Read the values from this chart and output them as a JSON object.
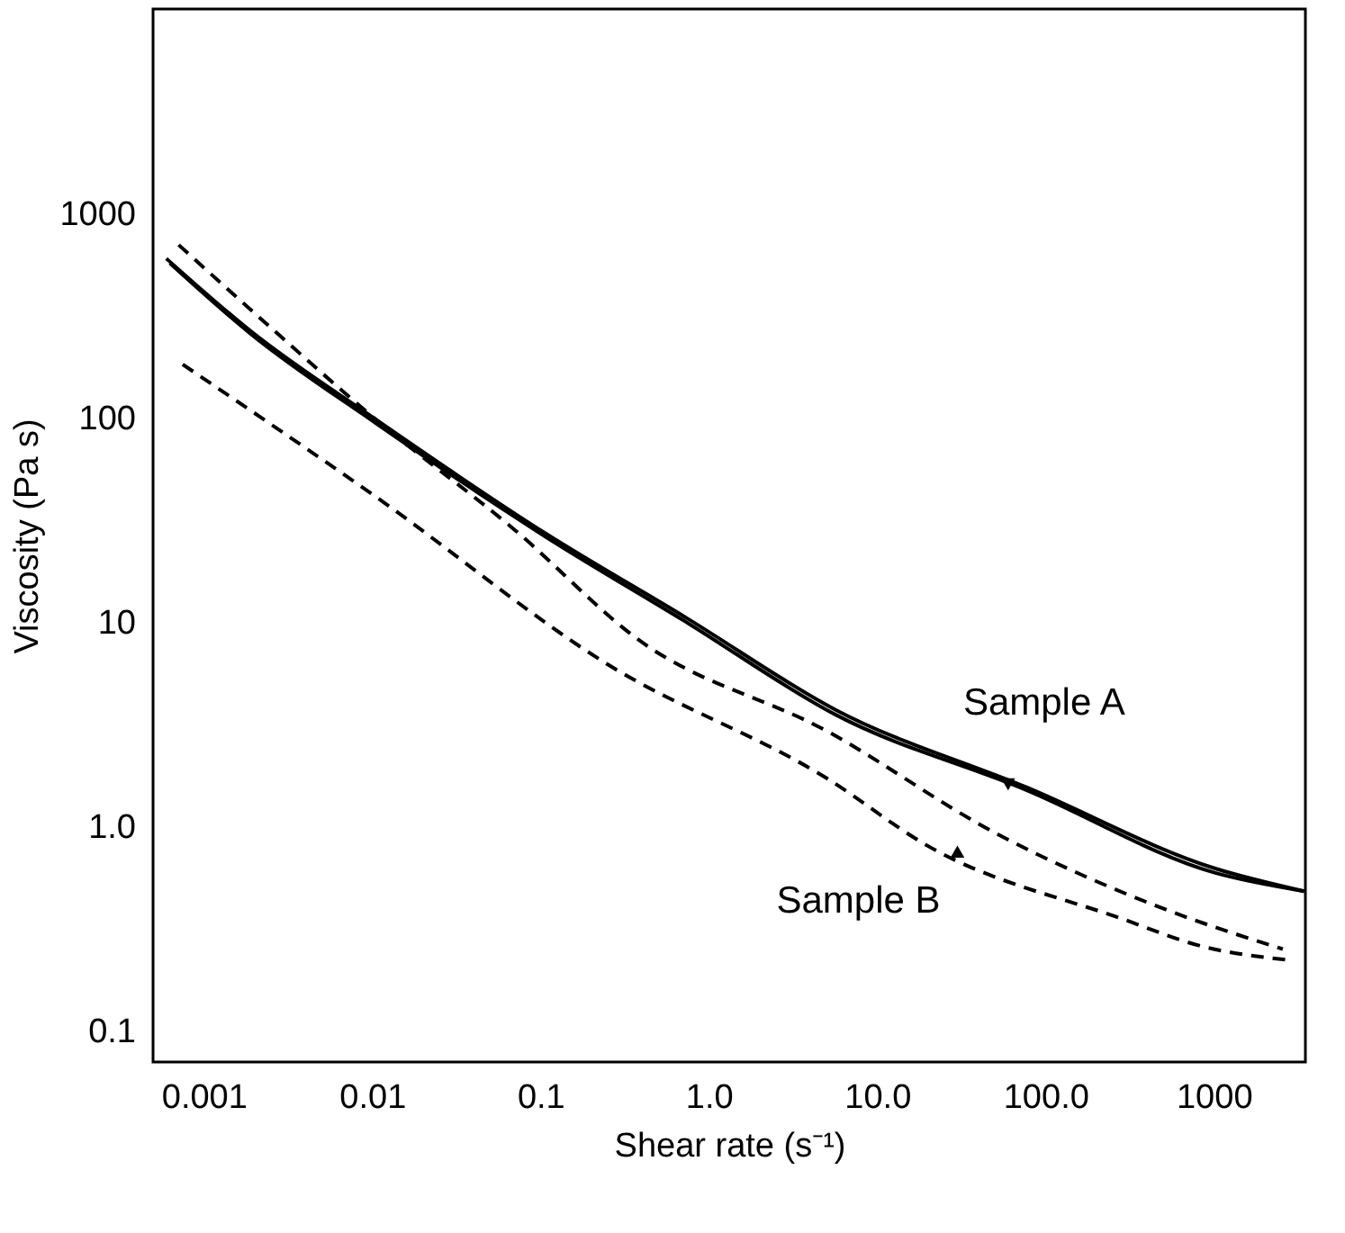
{
  "chart_data": {
    "type": "line",
    "xlabel": "Shear rate (s⁻¹)",
    "ylabel": "Viscosity (Pa s)",
    "log": "xy",
    "grid": false,
    "legend": false,
    "xlim": [
      0.0005,
      3500
    ],
    "ylim": [
      0.07,
      10000
    ],
    "xticks": [
      0.001,
      0.01,
      0.1,
      {
        "value": 1,
        "label": "1.0"
      },
      {
        "value": 10,
        "label": "10.0"
      },
      {
        "value": 100,
        "label": "100.0"
      },
      1000
    ],
    "yticks": [
      0.1,
      {
        "value": 1,
        "label": "1.0"
      },
      10,
      100,
      1000
    ],
    "series": [
      {
        "color": "#000000",
        "line_style": "solid",
        "x": [
          0.00063,
          0.0019,
          0.0105,
          0.108,
          0.73,
          5.7,
          77,
          1020,
          3440
        ],
        "values": [
          570,
          257,
          94,
          26,
          10,
          3.5,
          1.5,
          0.59,
          0.48
        ]
      },
      {
        "color": "#000000",
        "line_style": "solid",
        "x": [
          0.0006,
          0.0019,
          0.0105,
          0.108,
          0.73,
          5.7,
          77,
          1020,
          3440
        ],
        "values": [
          600,
          265,
          98,
          27,
          10.5,
          3.7,
          1.55,
          0.62,
          0.48
        ]
      },
      {
        "color": "#000000",
        "line_style": "dashed",
        "x": [
          0.00071,
          0.0024,
          0.0105,
          0.071,
          0.38,
          5.1,
          51,
          520,
          2570
        ],
        "values": [
          700,
          284,
          98,
          28,
          8.2,
          2.9,
          0.92,
          0.39,
          0.25
        ]
      },
      {
        "color": "#000000",
        "line_style": "dashed",
        "x": [
          0.00075,
          0.0105,
          0.25,
          5.1,
          20,
          290,
          820,
          2900
        ],
        "values": [
          182,
          41,
          6.2,
          1.7,
          0.8,
          0.35,
          0.26,
          0.22
        ]
      }
    ],
    "annotations": [
      {
        "text": "Sample A",
        "x": 60,
        "y": 1.6
      },
      {
        "text": "Sample B",
        "x": 30,
        "y": 0.75
      }
    ]
  }
}
